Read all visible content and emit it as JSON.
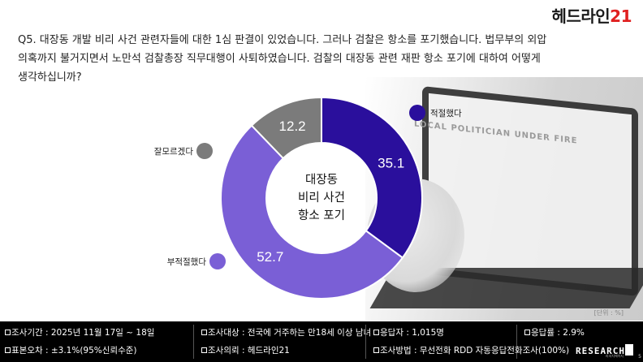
{
  "header": {
    "logo_text": "헤드라인",
    "logo_number": "21",
    "question_lines": [
      "Q5. 대장동 개발 비리 사건 관련자들에 대한 1심 판결이 있었습니다. 그러나 검찰은 항소를 포기했습니다. 법무부의 외압",
      "의혹까지 불거지면서 노만석 검찰총장 직무대행이 사퇴하였습니다. 검찰의 대장동 관련 재판 항소 포기에 대하여 어떻게",
      "생각하십니까?"
    ]
  },
  "background": {
    "headline_text": "LOCAL POLITICIAN UNDER FIRE"
  },
  "chart_data": {
    "type": "pie",
    "donut": true,
    "center_label": [
      "대장동",
      "비리 사건",
      "항소 포기"
    ],
    "categories": [
      "적절했다",
      "부적절했다",
      "잘모르겠다"
    ],
    "values": [
      35.1,
      52.7,
      12.2
    ],
    "colors": [
      "#2a0f9c",
      "#7a5fd6",
      "#7b7b7b"
    ],
    "unit_note": "[단위 : %]"
  },
  "footer": {
    "period": "조사기간 : 2025년 11월 17일 ~ 18일",
    "target": "조사대상 : 전국에 거주하는 만18세 이상 남녀",
    "respondents": "응답자 : 1,015명",
    "response_rate": "응답률 : 2.9%",
    "sampling_error": "표본오차 : ±3.1%(95%신뢰수준)",
    "client": "조사의뢰 : 헤드라인21",
    "method": "조사방법 : 무선전화 RDD 자동응답전화조사(100%)",
    "brand": "RESEARCH",
    "brand_sub": "리서치에이지",
    "page_number": "5"
  }
}
